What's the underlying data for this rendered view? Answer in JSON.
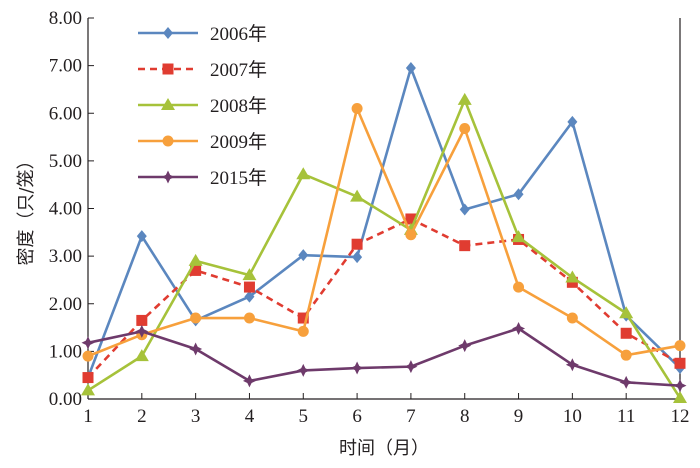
{
  "chart_data": {
    "type": "line",
    "title": "",
    "xlabel": "时间（月）",
    "ylabel": "密度（只/笼）",
    "x": [
      1,
      2,
      3,
      4,
      5,
      6,
      7,
      8,
      9,
      10,
      11,
      12
    ],
    "x_ticks": [
      "1",
      "2",
      "3",
      "4",
      "5",
      "6",
      "7",
      "8",
      "9",
      "10",
      "11",
      "12"
    ],
    "y_ticks": [
      "0.00",
      "1.00",
      "2.00",
      "3.00",
      "4.00",
      "5.00",
      "6.00",
      "7.00",
      "8.00"
    ],
    "xlim": [
      1,
      12
    ],
    "ylim": [
      0,
      8
    ],
    "grid": false,
    "legend_position": "top-left",
    "series": [
      {
        "name": "2006年",
        "color": "#5b87bf",
        "marker": "diamond",
        "dash": "solid",
        "values": [
          0.45,
          3.42,
          1.65,
          2.15,
          3.02,
          2.98,
          6.95,
          3.98,
          4.3,
          5.82,
          1.75,
          0.65
        ]
      },
      {
        "name": "2007年",
        "color": "#e03c31",
        "marker": "square",
        "dash": "dashed",
        "values": [
          0.45,
          1.65,
          2.7,
          2.35,
          1.7,
          3.25,
          3.78,
          3.22,
          3.35,
          2.45,
          1.38,
          0.75
        ]
      },
      {
        "name": "2008年",
        "color": "#a6c23a",
        "marker": "triangle",
        "dash": "solid",
        "values": [
          0.18,
          0.9,
          2.9,
          2.6,
          4.72,
          4.25,
          3.55,
          6.28,
          3.4,
          2.55,
          1.8,
          0.02
        ]
      },
      {
        "name": "2009年",
        "color": "#f7a03c",
        "marker": "circle",
        "dash": "solid",
        "values": [
          0.9,
          1.35,
          1.7,
          1.7,
          1.42,
          6.1,
          3.45,
          5.68,
          2.35,
          1.7,
          0.92,
          1.12
        ]
      },
      {
        "name": "2015年",
        "color": "#6e3a6b",
        "marker": "star",
        "dash": "solid",
        "values": [
          1.18,
          1.42,
          1.05,
          0.38,
          0.6,
          0.65,
          0.68,
          1.12,
          1.48,
          0.72,
          0.35,
          0.28
        ]
      }
    ]
  }
}
